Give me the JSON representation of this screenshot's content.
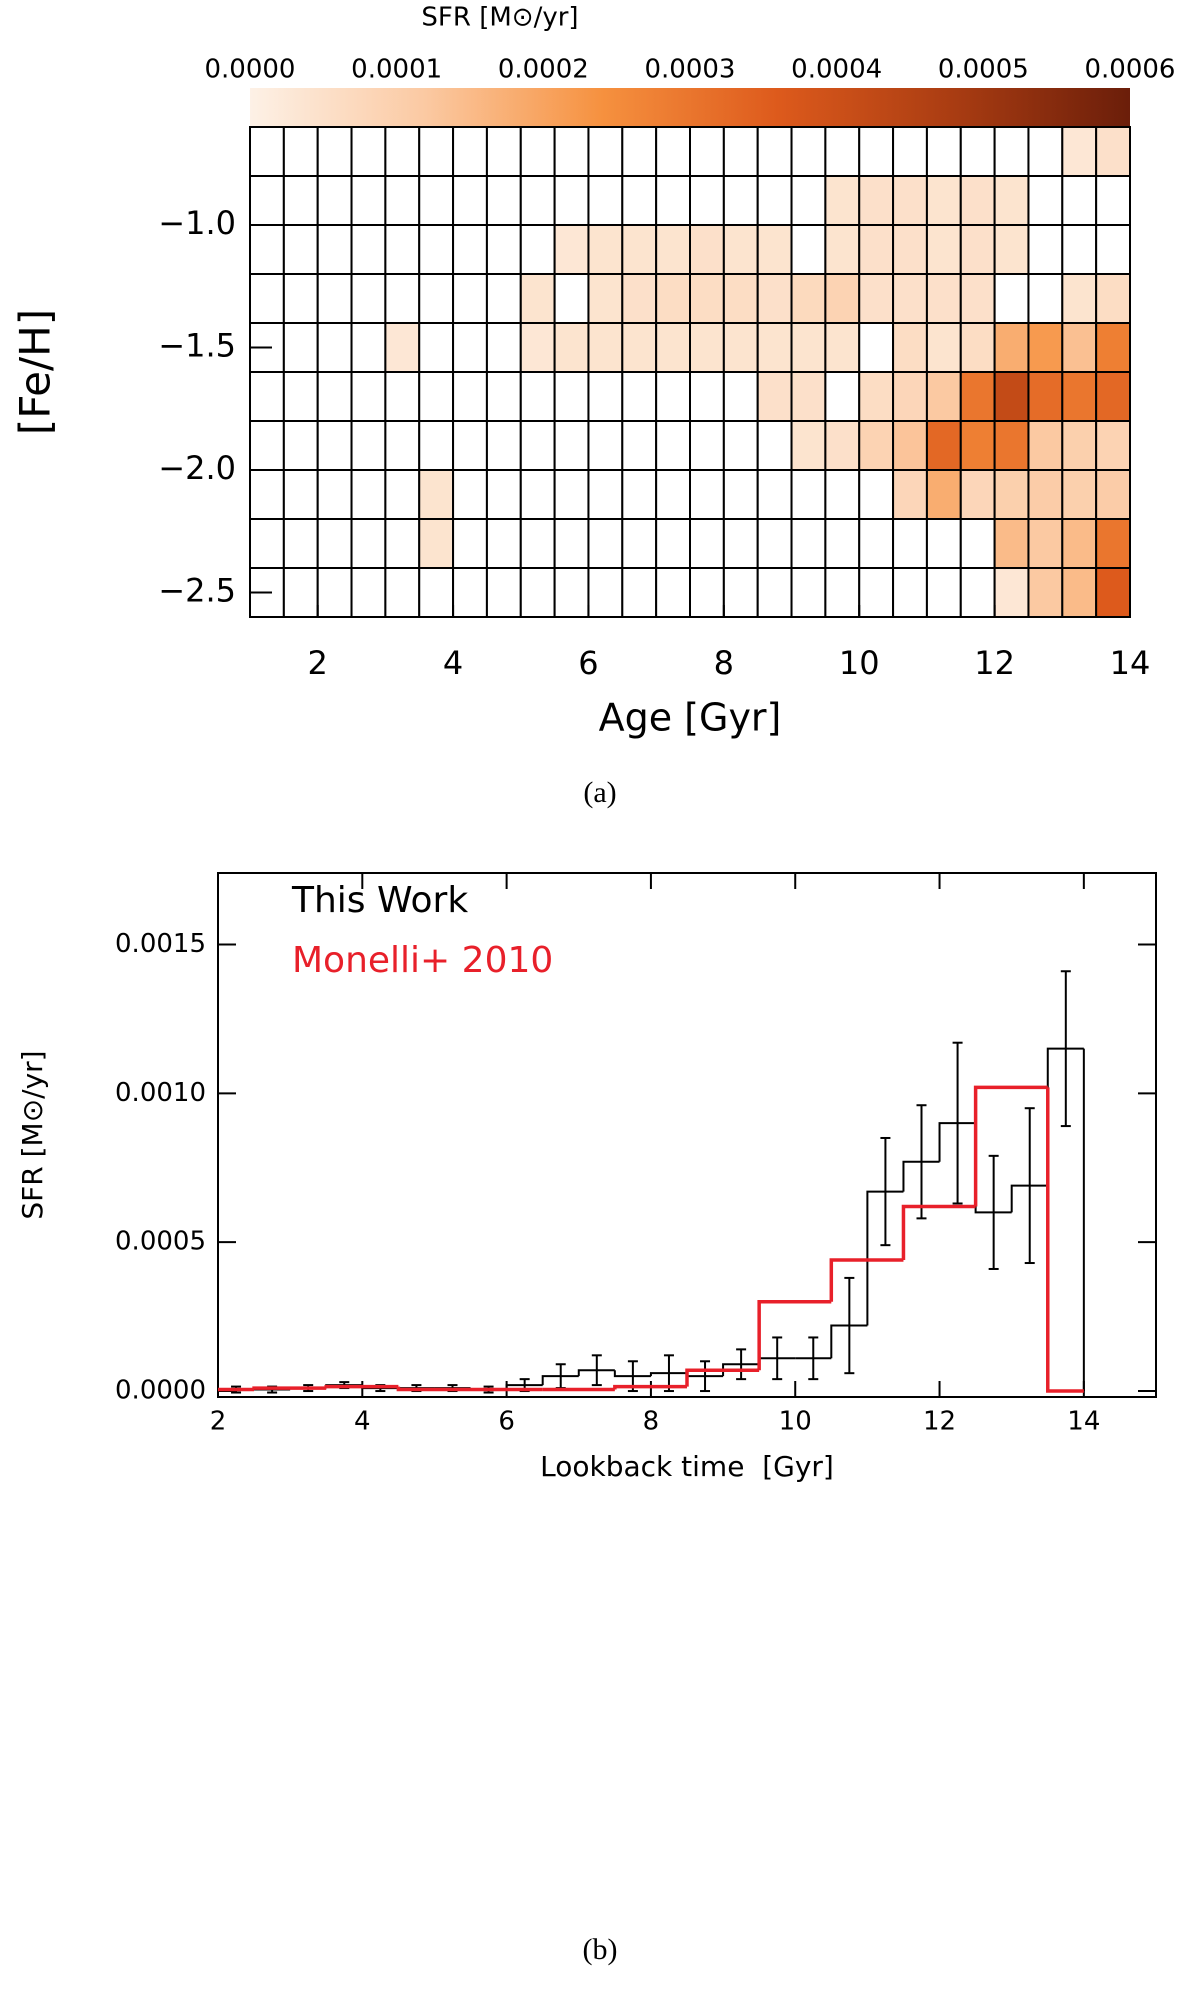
{
  "chart_data": [
    {
      "type": "heatmap",
      "caption": "(a)",
      "xlabel": "Age [Gyr]",
      "ylabel": "[Fe/H]",
      "xbins": [
        1,
        1.5,
        2,
        2.5,
        3,
        3.5,
        4,
        4.5,
        5,
        5.5,
        6,
        6.5,
        7,
        7.5,
        8,
        8.5,
        9,
        9.5,
        10,
        10.5,
        11,
        11.5,
        12,
        12.5,
        13,
        13.5,
        14
      ],
      "ybins": [
        -0.6,
        -0.8,
        -1.0,
        -1.2,
        -1.4,
        -1.6,
        -1.8,
        -2.0,
        -2.2,
        -2.4,
        -2.6
      ],
      "values": [
        [
          0,
          0,
          0,
          0,
          0,
          0,
          0,
          0,
          0,
          0,
          0,
          0,
          0,
          0,
          0,
          0,
          0,
          0,
          0,
          0,
          0,
          0,
          0,
          0,
          3e-05,
          5e-05
        ],
        [
          0,
          0,
          0,
          0,
          0,
          0,
          0,
          0,
          0,
          0,
          0,
          0,
          0,
          0,
          0,
          0,
          0,
          4e-05,
          5e-05,
          5e-05,
          4e-05,
          5e-05,
          4e-05,
          0,
          0,
          0
        ],
        [
          0,
          0,
          0,
          0,
          0,
          0,
          0,
          0,
          0,
          3e-05,
          4e-05,
          4e-05,
          4e-05,
          5e-05,
          4e-05,
          4e-05,
          0,
          4e-05,
          5e-05,
          5e-05,
          4e-05,
          5e-05,
          4e-05,
          0,
          0,
          0
        ],
        [
          0,
          0,
          0,
          0,
          0,
          0,
          0,
          0,
          4e-05,
          0,
          4e-05,
          5e-05,
          6e-05,
          6e-05,
          6e-05,
          5e-05,
          7e-05,
          9e-05,
          5e-05,
          5e-05,
          5e-05,
          5e-05,
          0,
          0,
          4e-05,
          6e-05
        ],
        [
          0,
          0,
          0,
          0,
          3e-05,
          0,
          0,
          0,
          3e-05,
          4e-05,
          4e-05,
          4e-05,
          4e-05,
          4e-05,
          4e-05,
          4e-05,
          4e-05,
          4e-05,
          0,
          6e-05,
          4e-05,
          6e-05,
          0.00018,
          0.00022,
          0.00014,
          0.00028
        ],
        [
          0,
          0,
          0,
          0,
          0,
          0,
          0,
          0,
          0,
          0,
          0,
          0,
          0,
          0,
          0,
          5e-05,
          5e-05,
          0,
          6e-05,
          8e-05,
          0.00012,
          0.0003,
          0.00042,
          0.00032,
          0.0003,
          0.00033
        ],
        [
          0,
          0,
          0,
          0,
          0,
          0,
          0,
          0,
          0,
          0,
          0,
          0,
          0,
          0,
          0,
          0,
          4e-05,
          5e-05,
          9e-05,
          0.00013,
          0.00033,
          0.00028,
          0.0003,
          0.00012,
          0.0001,
          9e-05
        ],
        [
          0,
          0,
          0,
          0,
          0,
          4e-05,
          0,
          0,
          0,
          0,
          0,
          0,
          0,
          0,
          0,
          0,
          0,
          0,
          0,
          8e-05,
          0.00018,
          8e-05,
          0.0001,
          0.00011,
          0.0001,
          0.00011
        ],
        [
          0,
          0,
          0,
          0,
          0,
          4e-05,
          0,
          0,
          0,
          0,
          0,
          0,
          0,
          0,
          0,
          0,
          0,
          0,
          0,
          0,
          0,
          0,
          0.00015,
          0.00012,
          0.00015,
          0.0003
        ],
        [
          0,
          0,
          0,
          0,
          0,
          0,
          0,
          0,
          0,
          0,
          0,
          0,
          0,
          0,
          0,
          0,
          0,
          0,
          0,
          0,
          0,
          0,
          3e-05,
          0.00012,
          0.00015,
          0.00036
        ]
      ],
      "xlim": [
        1,
        14
      ],
      "xticks": [
        2,
        4,
        6,
        8,
        10,
        12,
        14
      ],
      "ylim": [
        -2.6,
        -0.6
      ],
      "yticks": [
        {
          "value": -1.0,
          "label": "−1.0"
        },
        {
          "value": -1.5,
          "label": "−1.5"
        },
        {
          "value": -2.0,
          "label": "−2.0"
        },
        {
          "value": -2.5,
          "label": "−2.5"
        }
      ],
      "colorbar": {
        "label": "SFR [M⊙/yr]",
        "lim": [
          0,
          0.0006
        ],
        "ticks": [
          {
            "value": 0,
            "label": "0.0000"
          },
          {
            "value": 0.0001,
            "label": "0.0001"
          },
          {
            "value": 0.0002,
            "label": "0.0002"
          },
          {
            "value": 0.0003,
            "label": "0.0003"
          },
          {
            "value": 0.0004,
            "label": "0.0004"
          },
          {
            "value": 0.0005,
            "label": "0.0005"
          },
          {
            "value": 0.0006,
            "label": "0.0006"
          }
        ],
        "colors": [
          "#fdf1e6",
          "#fbc9a2",
          "#f6913f",
          "#dd5a1c",
          "#a93c12",
          "#6b1e0a"
        ]
      }
    },
    {
      "type": "step",
      "caption": "(b)",
      "xlabel": "Lookback time  [Gyr]",
      "ylabel": "SFR [M⊙/yr]",
      "xlim": [
        2,
        15
      ],
      "xticks": [
        2,
        4,
        6,
        8,
        10,
        12,
        14
      ],
      "ylim": [
        -2e-05,
        0.00174
      ],
      "yticks": [
        {
          "value": 0,
          "label": "0.0000"
        },
        {
          "value": 0.0005,
          "label": "0.0005"
        },
        {
          "value": 0.001,
          "label": "0.0010"
        },
        {
          "value": 0.0015,
          "label": "0.0015"
        }
      ],
      "series": [
        {
          "name": "This Work",
          "color": "#000000",
          "bins": [
            2,
            2.5,
            3,
            3.5,
            4,
            4.5,
            5,
            5.5,
            6,
            6.5,
            7,
            7.5,
            8,
            8.5,
            9,
            9.5,
            10,
            10.5,
            11,
            11.5,
            12,
            12.5,
            13,
            13.5,
            14
          ],
          "values": [
            5e-06,
            5e-06,
            1e-05,
            2e-05,
            1e-05,
            1e-05,
            1e-05,
            5e-06,
            2e-05,
            5e-05,
            7e-05,
            5e-05,
            6e-05,
            5e-05,
            9e-05,
            0.00011,
            0.00011,
            0.00022,
            0.00067,
            0.00077,
            0.0009,
            0.0006,
            0.00069,
            0.00115
          ],
          "errors": [
            1e-05,
            1e-05,
            1e-05,
            1e-05,
            1e-05,
            1e-05,
            1e-05,
            1e-05,
            2e-05,
            4e-05,
            5e-05,
            5e-05,
            6e-05,
            5e-05,
            5e-05,
            7e-05,
            7e-05,
            0.00016,
            0.00018,
            0.00019,
            0.00027,
            0.00019,
            0.00026,
            0.00026
          ]
        },
        {
          "name": "Monelli+ 2010",
          "color": "#e8202a",
          "bins": [
            2,
            2.5,
            3.5,
            4.5,
            5.5,
            6.5,
            7.5,
            8.5,
            9.5,
            10.5,
            11.5,
            12.5,
            13.5,
            14
          ],
          "values": [
            5e-06,
            1e-05,
            1.5e-05,
            5e-06,
            5e-06,
            5e-06,
            1.5e-05,
            7e-05,
            0.0003,
            0.00044,
            0.00062,
            0.00102,
            0
          ]
        }
      ]
    }
  ]
}
